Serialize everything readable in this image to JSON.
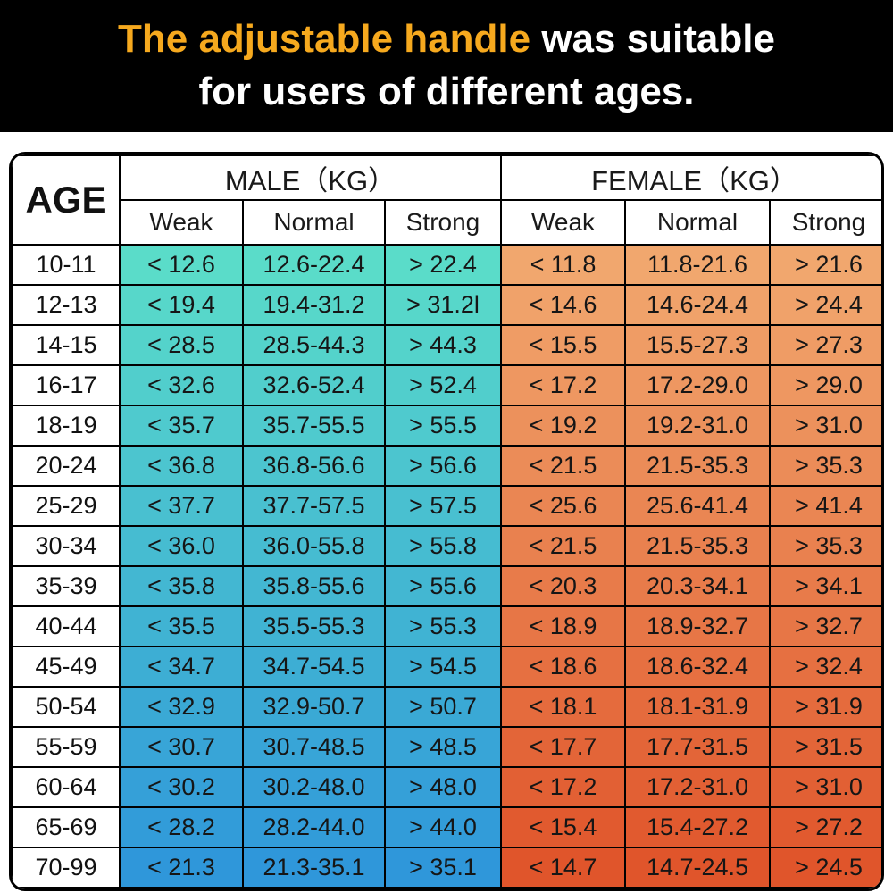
{
  "banner": {
    "line1_highlight": "The adjustable handle",
    "line1_rest": " was suitable",
    "line2": "for users of different ages.",
    "highlight_color": "#F6A91E",
    "text_color": "#FFFFFF",
    "bg_color": "#000000"
  },
  "table": {
    "corner_header": "AGE",
    "group_headers": {
      "male": "MALE（KG）",
      "female": "FEMALE（KG）"
    },
    "subheaders": [
      "Weak",
      "Normal",
      "Strong"
    ],
    "colors": {
      "male_gradient_top": "#5ADCC9",
      "male_gradient_bottom": "#2F97DA",
      "female_gradient_top": "#F1A76E",
      "female_gradient_bottom": "#E0552B",
      "border": "#000000",
      "header_bg": "#FFFFFF"
    },
    "rows": [
      {
        "age": "10-11",
        "male": [
          "< 12.6",
          "12.6-22.4",
          "> 22.4"
        ],
        "female": [
          "< 11.8",
          "11.8-21.6",
          "> 21.6"
        ]
      },
      {
        "age": "12-13",
        "male": [
          "< 19.4",
          "19.4-31.2",
          "> 31.2l"
        ],
        "female": [
          "< 14.6",
          "14.6-24.4",
          "> 24.4"
        ]
      },
      {
        "age": "14-15",
        "male": [
          "< 28.5",
          "28.5-44.3",
          "> 44.3"
        ],
        "female": [
          "< 15.5",
          "15.5-27.3",
          "> 27.3"
        ]
      },
      {
        "age": "16-17",
        "male": [
          "< 32.6",
          "32.6-52.4",
          "> 52.4"
        ],
        "female": [
          "< 17.2",
          "17.2-29.0",
          "> 29.0"
        ]
      },
      {
        "age": "18-19",
        "male": [
          "< 35.7",
          "35.7-55.5",
          "> 55.5"
        ],
        "female": [
          "< 19.2",
          "19.2-31.0",
          "> 31.0"
        ]
      },
      {
        "age": "20-24",
        "male": [
          "< 36.8",
          "36.8-56.6",
          "> 56.6"
        ],
        "female": [
          "< 21.5",
          "21.5-35.3",
          "> 35.3"
        ]
      },
      {
        "age": "25-29",
        "male": [
          "< 37.7",
          "37.7-57.5",
          "> 57.5"
        ],
        "female": [
          "< 25.6",
          "25.6-41.4",
          "> 41.4"
        ]
      },
      {
        "age": "30-34",
        "male": [
          "< 36.0",
          "36.0-55.8",
          "> 55.8"
        ],
        "female": [
          "< 21.5",
          "21.5-35.3",
          "> 35.3"
        ]
      },
      {
        "age": "35-39",
        "male": [
          "< 35.8",
          "35.8-55.6",
          "> 55.6"
        ],
        "female": [
          "< 20.3",
          "20.3-34.1",
          "> 34.1"
        ]
      },
      {
        "age": "40-44",
        "male": [
          "< 35.5",
          "35.5-55.3",
          "> 55.3"
        ],
        "female": [
          "< 18.9",
          "18.9-32.7",
          "> 32.7"
        ]
      },
      {
        "age": "45-49",
        "male": [
          "< 34.7",
          "34.7-54.5",
          "> 54.5"
        ],
        "female": [
          "< 18.6",
          "18.6-32.4",
          "> 32.4"
        ]
      },
      {
        "age": "50-54",
        "male": [
          "< 32.9",
          "32.9-50.7",
          "> 50.7"
        ],
        "female": [
          "< 18.1",
          "18.1-31.9",
          "> 31.9"
        ]
      },
      {
        "age": "55-59",
        "male": [
          "< 30.7",
          "30.7-48.5",
          "> 48.5"
        ],
        "female": [
          "< 17.7",
          "17.7-31.5",
          "> 31.5"
        ]
      },
      {
        "age": "60-64",
        "male": [
          "< 30.2",
          "30.2-48.0",
          "> 48.0"
        ],
        "female": [
          "< 17.2",
          "17.2-31.0",
          "> 31.0"
        ]
      },
      {
        "age": "65-69",
        "male": [
          "< 28.2",
          "28.2-44.0",
          "> 44.0"
        ],
        "female": [
          "< 15.4",
          "15.4-27.2",
          "> 27.2"
        ]
      },
      {
        "age": "70-99",
        "male": [
          "< 21.3",
          "21.3-35.1",
          "> 35.1"
        ],
        "female": [
          "< 14.7",
          "14.7-24.5",
          "> 24.5"
        ]
      }
    ]
  },
  "chart_data": {
    "type": "table",
    "title": "The adjustable handle was suitable for users of different ages.",
    "unit": "KG",
    "columns": [
      "AGE",
      "MALE Weak",
      "MALE Normal",
      "MALE Strong",
      "FEMALE Weak",
      "FEMALE Normal",
      "FEMALE Strong"
    ],
    "rows": [
      [
        "10-11",
        "< 12.6",
        "12.6-22.4",
        "> 22.4",
        "< 11.8",
        "11.8-21.6",
        "> 21.6"
      ],
      [
        "12-13",
        "< 19.4",
        "19.4-31.2",
        "> 31.2l",
        "< 14.6",
        "14.6-24.4",
        "> 24.4"
      ],
      [
        "14-15",
        "< 28.5",
        "28.5-44.3",
        "> 44.3",
        "< 15.5",
        "15.5-27.3",
        "> 27.3"
      ],
      [
        "16-17",
        "< 32.6",
        "32.6-52.4",
        "> 52.4",
        "< 17.2",
        "17.2-29.0",
        "> 29.0"
      ],
      [
        "18-19",
        "< 35.7",
        "35.7-55.5",
        "> 55.5",
        "< 19.2",
        "19.2-31.0",
        "> 31.0"
      ],
      [
        "20-24",
        "< 36.8",
        "36.8-56.6",
        "> 56.6",
        "< 21.5",
        "21.5-35.3",
        "> 35.3"
      ],
      [
        "25-29",
        "< 37.7",
        "37.7-57.5",
        "> 57.5",
        "< 25.6",
        "25.6-41.4",
        "> 41.4"
      ],
      [
        "30-34",
        "< 36.0",
        "36.0-55.8",
        "> 55.8",
        "< 21.5",
        "21.5-35.3",
        "> 35.3"
      ],
      [
        "35-39",
        "< 35.8",
        "35.8-55.6",
        "> 55.6",
        "< 20.3",
        "20.3-34.1",
        "> 34.1"
      ],
      [
        "40-44",
        "< 35.5",
        "35.5-55.3",
        "> 55.3",
        "< 18.9",
        "18.9-32.7",
        "> 32.7"
      ],
      [
        "45-49",
        "< 34.7",
        "34.7-54.5",
        "> 54.5",
        "< 18.6",
        "18.6-32.4",
        "> 32.4"
      ],
      [
        "50-54",
        "< 32.9",
        "32.9-50.7",
        "> 50.7",
        "< 18.1",
        "18.1-31.9",
        "> 31.9"
      ],
      [
        "55-59",
        "< 30.7",
        "30.7-48.5",
        "> 48.5",
        "< 17.7",
        "17.7-31.5",
        "> 31.5"
      ],
      [
        "60-64",
        "< 30.2",
        "30.2-48.0",
        "> 48.0",
        "< 17.2",
        "17.2-31.0",
        "> 31.0"
      ],
      [
        "65-69",
        "< 28.2",
        "28.2-44.0",
        "> 44.0",
        "< 15.4",
        "15.4-27.2",
        "> 27.2"
      ],
      [
        "70-99",
        "< 21.3",
        "21.3-35.1",
        "> 35.1",
        "< 14.7",
        "14.7-24.5",
        "> 24.5"
      ]
    ]
  }
}
